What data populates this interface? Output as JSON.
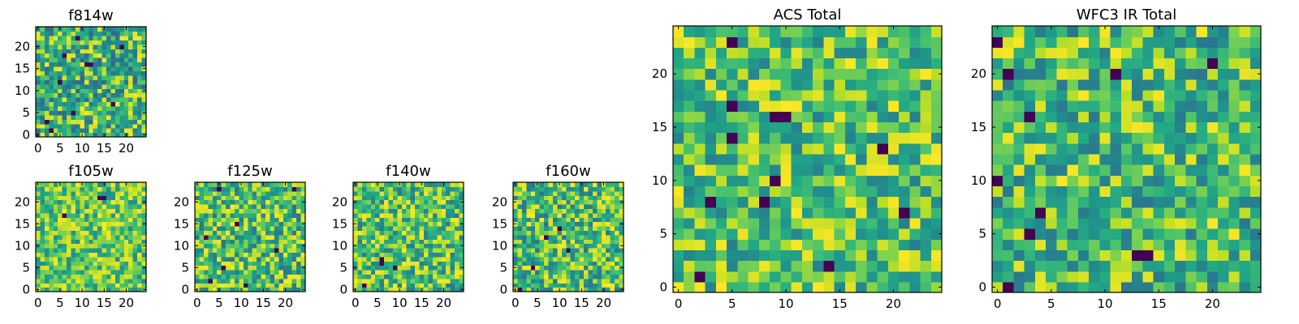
{
  "chart_data": [
    {
      "id": "f814w",
      "type": "heatmap",
      "title": "f814w",
      "grid_size": 25,
      "xlim": [
        0,
        24
      ],
      "ylim": [
        0,
        24
      ],
      "xticks": [
        0,
        5,
        10,
        15,
        20
      ],
      "yticks": [
        0,
        5,
        10,
        15,
        20
      ],
      "colormap": "viridis",
      "seed": 814,
      "base": 0.55,
      "bright_fraction": 0.22,
      "dark_pixels": [
        [
          3,
          1
        ],
        [
          2,
          3
        ],
        [
          8,
          5
        ],
        [
          17,
          7
        ],
        [
          5,
          12
        ],
        [
          11,
          16
        ],
        [
          12,
          16
        ],
        [
          6,
          18
        ],
        [
          19,
          20
        ],
        [
          9,
          22
        ]
      ]
    },
    {
      "id": "f105w",
      "type": "heatmap",
      "title": "f105w",
      "grid_size": 25,
      "xlim": [
        0,
        24
      ],
      "ylim": [
        0,
        24
      ],
      "xticks": [
        0,
        5,
        10,
        15,
        20
      ],
      "yticks": [
        0,
        5,
        10,
        15,
        20
      ],
      "colormap": "viridis",
      "seed": 105,
      "base": 0.68,
      "bright_fraction": 0.3,
      "dark_pixels": [
        [
          14,
          21
        ],
        [
          15,
          21
        ],
        [
          6,
          17
        ]
      ]
    },
    {
      "id": "f125w",
      "type": "heatmap",
      "title": "f125w",
      "grid_size": 25,
      "xlim": [
        0,
        24
      ],
      "ylim": [
        0,
        24
      ],
      "xticks": [
        0,
        5,
        10,
        15,
        20
      ],
      "yticks": [
        0,
        5,
        10,
        15,
        20
      ],
      "colormap": "viridis",
      "seed": 125,
      "base": 0.6,
      "bright_fraction": 0.3,
      "dark_pixels": [
        [
          5,
          23
        ],
        [
          22,
          23
        ],
        [
          9,
          15
        ],
        [
          2,
          12
        ],
        [
          18,
          9
        ],
        [
          6,
          5
        ],
        [
          3,
          2
        ],
        [
          11,
          1
        ]
      ]
    },
    {
      "id": "f140w",
      "type": "heatmap",
      "title": "f140w",
      "grid_size": 25,
      "xlim": [
        0,
        24
      ],
      "ylim": [
        0,
        24
      ],
      "xticks": [
        0,
        5,
        10,
        15,
        20
      ],
      "yticks": [
        0,
        5,
        10,
        15,
        20
      ],
      "colormap": "viridis",
      "seed": 140,
      "base": 0.62,
      "bright_fraction": 0.28,
      "dark_pixels": [
        [
          6,
          7
        ],
        [
          6,
          6
        ],
        [
          9,
          5
        ],
        [
          2,
          1
        ]
      ]
    },
    {
      "id": "f160w",
      "type": "heatmap",
      "title": "f160w",
      "grid_size": 25,
      "xlim": [
        0,
        24
      ],
      "ylim": [
        0,
        24
      ],
      "xticks": [
        0,
        5,
        10,
        15,
        20
      ],
      "yticks": [
        0,
        5,
        10,
        15,
        20
      ],
      "colormap": "viridis",
      "seed": 160,
      "base": 0.6,
      "bright_fraction": 0.3,
      "dark_pixels": [
        [
          10,
          14
        ],
        [
          7,
          12
        ],
        [
          12,
          9
        ],
        [
          4,
          5
        ],
        [
          1,
          0
        ]
      ]
    },
    {
      "id": "acs-total",
      "type": "heatmap",
      "title": "ACS Total",
      "grid_size": 25,
      "xlim": [
        0,
        24
      ],
      "ylim": [
        0,
        24
      ],
      "xticks": [
        0,
        5,
        10,
        15,
        20
      ],
      "yticks": [
        0,
        5,
        10,
        15,
        20
      ],
      "colormap": "viridis",
      "seed": 7,
      "base": 0.64,
      "bright_fraction": 0.25,
      "dark_pixels": [
        [
          5,
          23
        ],
        [
          5,
          17
        ],
        [
          9,
          16
        ],
        [
          10,
          16
        ],
        [
          5,
          14
        ],
        [
          19,
          13
        ],
        [
          9,
          10
        ],
        [
          3,
          8
        ],
        [
          8,
          8
        ],
        [
          21,
          7
        ],
        [
          2,
          1
        ],
        [
          14,
          2
        ]
      ]
    },
    {
      "id": "wfc3-ir-total",
      "type": "heatmap",
      "title": "WFC3 IR Total",
      "grid_size": 25,
      "xlim": [
        0,
        24
      ],
      "ylim": [
        0,
        24
      ],
      "xticks": [
        0,
        5,
        10,
        15,
        20
      ],
      "yticks": [
        0,
        5,
        10,
        15,
        20
      ],
      "colormap": "viridis",
      "seed": 11,
      "base": 0.6,
      "bright_fraction": 0.25,
      "dark_pixels": [
        [
          0,
          23
        ],
        [
          20,
          21
        ],
        [
          1,
          20
        ],
        [
          11,
          20
        ],
        [
          3,
          16
        ],
        [
          0,
          10
        ],
        [
          4,
          7
        ],
        [
          3,
          5
        ],
        [
          13,
          3
        ],
        [
          14,
          3
        ],
        [
          1,
          0
        ]
      ]
    }
  ]
}
